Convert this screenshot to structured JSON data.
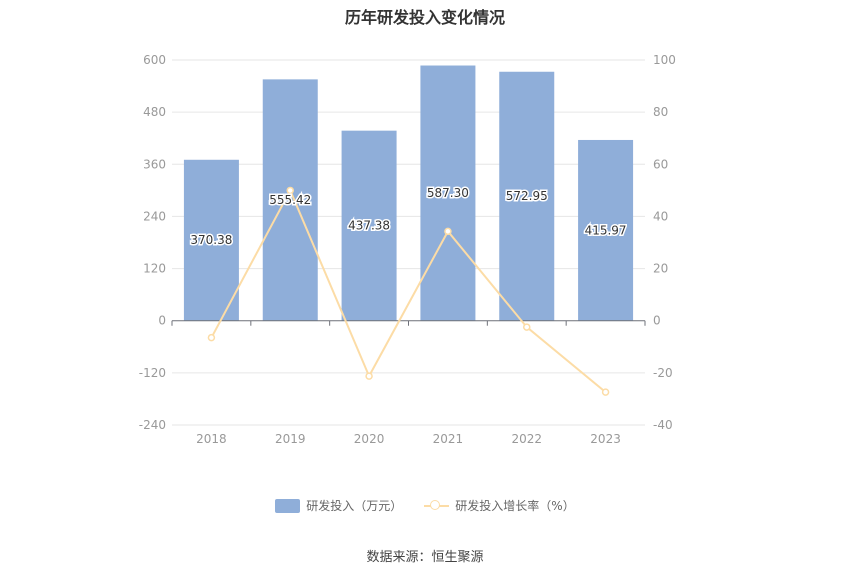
{
  "title": "历年研发投入变化情况",
  "source": "数据来源：恒生聚源",
  "colors": {
    "bar": "#8faed9",
    "line": "#fcdca6",
    "axis_text": "#999999",
    "grid": "#e6e6e6"
  },
  "chart_data": {
    "type": "bar",
    "categories": [
      "2018",
      "2019",
      "2020",
      "2021",
      "2022",
      "2023"
    ],
    "series": [
      {
        "name": "研发投入（万元）",
        "type": "bar",
        "axis": "left",
        "values": [
          370.38,
          555.42,
          437.38,
          587.3,
          572.95,
          415.97
        ],
        "labels": [
          "370.38",
          "555.42",
          "437.38",
          "587.30",
          "572.95",
          "415.97"
        ]
      },
      {
        "name": "研发投入增长率（%）",
        "type": "line",
        "axis": "right",
        "values": [
          -6.5,
          49.96,
          -21.25,
          34.28,
          -2.44,
          -27.4
        ]
      }
    ],
    "y_left": {
      "min": -240,
      "max": 600,
      "ticks": [
        -240,
        -120,
        0,
        120,
        240,
        360,
        480,
        600
      ]
    },
    "y_right": {
      "min": -40,
      "max": 100,
      "ticks": [
        -40,
        -20,
        0,
        20,
        40,
        60,
        80,
        100
      ]
    },
    "grid": true,
    "legend_position": "bottom"
  }
}
